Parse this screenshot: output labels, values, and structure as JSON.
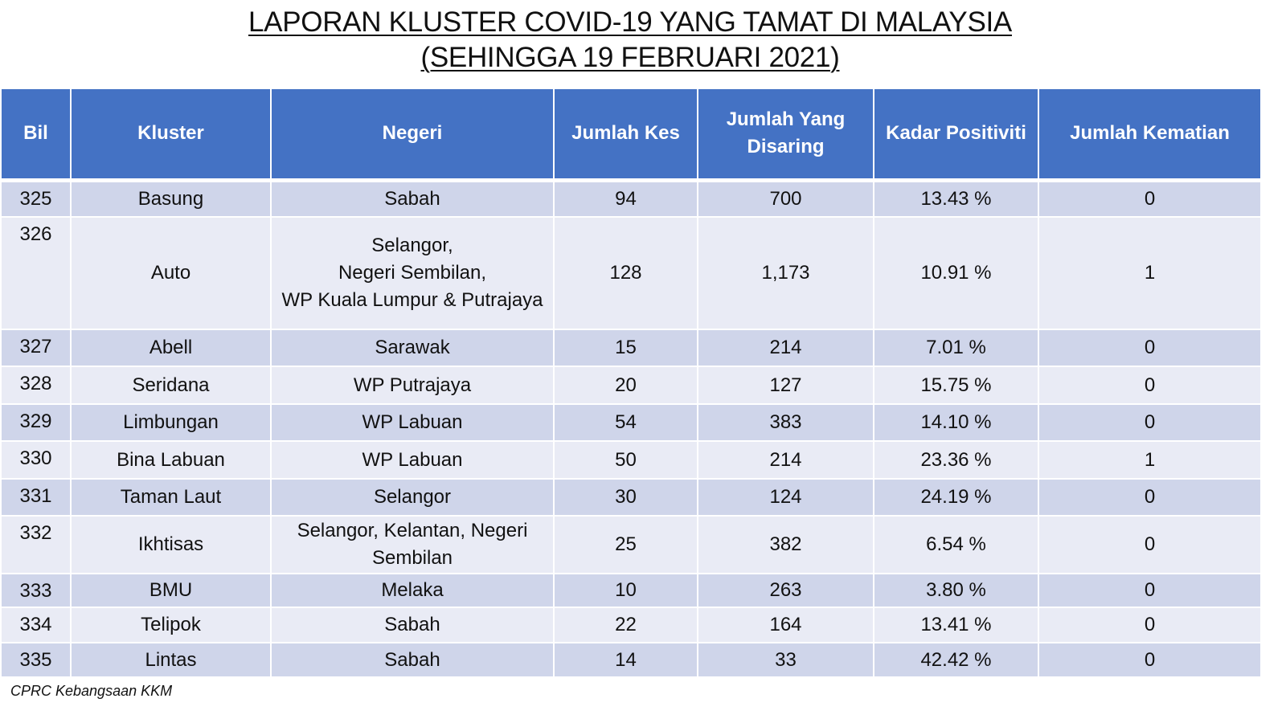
{
  "title": {
    "line1": "LAPORAN KLUSTER COVID-19 YANG TAMAT DI MALAYSIA",
    "line2": "(SEHINGGA 19 FEBRUARI 2021)"
  },
  "table": {
    "headers": {
      "bil": "Bil",
      "kluster": "Kluster",
      "negeri": "Negeri",
      "jumlah_kes": "Jumlah Kes",
      "jumlah_disaring_1": "Jumlah Yang",
      "jumlah_disaring_2": "Disaring",
      "kadar_positiviti": "Kadar Positiviti",
      "jumlah_kematian": "Jumlah Kematian"
    },
    "rows": [
      {
        "bil": "325",
        "kluster": "Basung",
        "negeri": [
          "Sabah"
        ],
        "kes": "94",
        "disaring": "700",
        "positiviti": "13.43 %",
        "kematian": "0"
      },
      {
        "bil": "326",
        "kluster": "Auto",
        "negeri": [
          "Selangor,",
          "Negeri Sembilan,",
          "WP Kuala Lumpur & Putrajaya"
        ],
        "kes": "128",
        "disaring": "1,173",
        "positiviti": "10.91 %",
        "kematian": "1"
      },
      {
        "bil": "327",
        "kluster": "Abell",
        "negeri": [
          "Sarawak"
        ],
        "kes": "15",
        "disaring": "214",
        "positiviti": "7.01 %",
        "kematian": "0"
      },
      {
        "bil": "328",
        "kluster": "Seridana",
        "negeri": [
          "WP Putrajaya"
        ],
        "kes": "20",
        "disaring": "127",
        "positiviti": "15.75 %",
        "kematian": "0"
      },
      {
        "bil": "329",
        "kluster": "Limbungan",
        "negeri": [
          "WP Labuan"
        ],
        "kes": "54",
        "disaring": "383",
        "positiviti": "14.10 %",
        "kematian": "0"
      },
      {
        "bil": "330",
        "kluster": "Bina Labuan",
        "negeri": [
          "WP Labuan"
        ],
        "kes": "50",
        "disaring": "214",
        "positiviti": "23.36 %",
        "kematian": "1"
      },
      {
        "bil": "331",
        "kluster": "Taman Laut",
        "negeri": [
          "Selangor"
        ],
        "kes": "30",
        "disaring": "124",
        "positiviti": "24.19 %",
        "kematian": "0"
      },
      {
        "bil": "332",
        "kluster": "Ikhtisas",
        "negeri": [
          "Selangor, Kelantan, Negeri",
          "Sembilan"
        ],
        "kes": "25",
        "disaring": "382",
        "positiviti": "6.54 %",
        "kematian": "0"
      },
      {
        "bil": "333",
        "kluster": "BMU",
        "negeri": [
          "Melaka"
        ],
        "kes": "10",
        "disaring": "263",
        "positiviti": "3.80 %",
        "kematian": "0"
      },
      {
        "bil": "334",
        "kluster": "Telipok",
        "negeri": [
          "Sabah"
        ],
        "kes": "22",
        "disaring": "164",
        "positiviti": "13.41 %",
        "kematian": "0"
      },
      {
        "bil": "335",
        "kluster": "Lintas",
        "negeri": [
          "Sabah"
        ],
        "kes": "14",
        "disaring": "33",
        "positiviti": "42.42 %",
        "kematian": "0"
      }
    ]
  },
  "footer": {
    "source": "CPRC Kebangsaan KKM"
  },
  "colors": {
    "header_bg": "#4472c4",
    "row_dark": "#cfd5ea",
    "row_light": "#e9ebf5"
  }
}
